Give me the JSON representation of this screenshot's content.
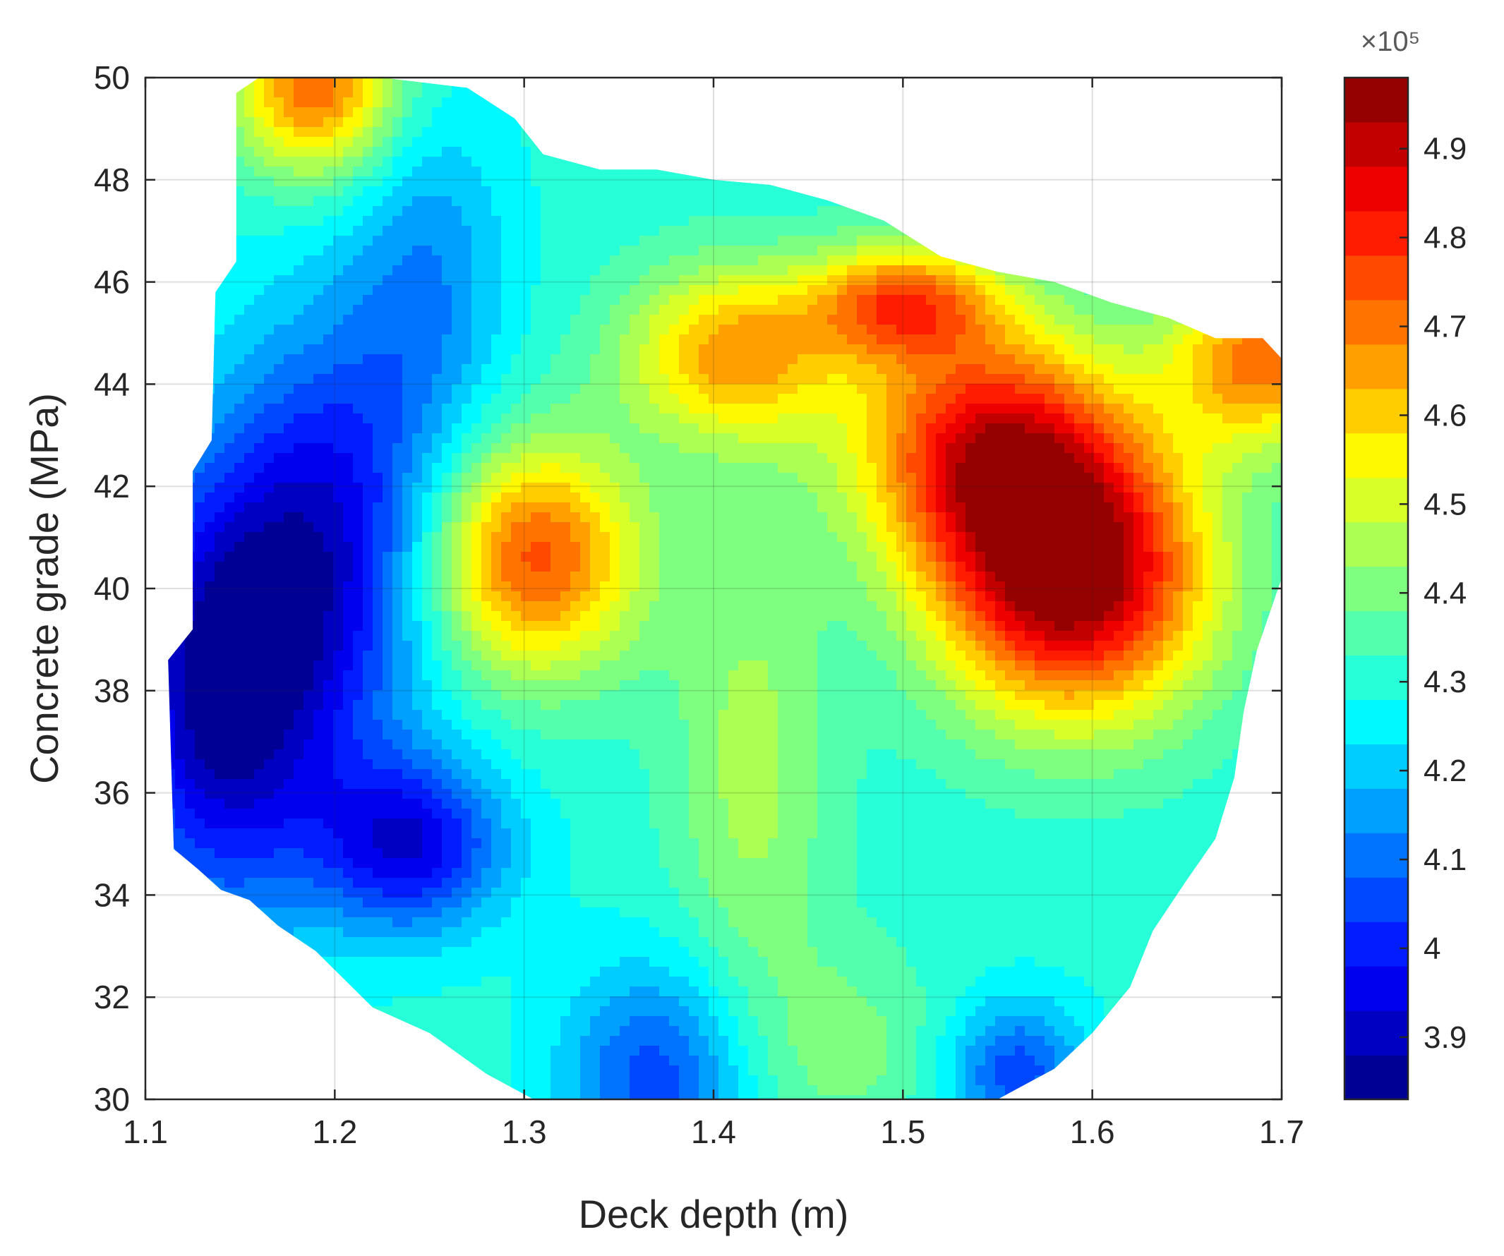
{
  "chart_data": {
    "type": "contour",
    "title": "",
    "xlabel": "Deck depth (m)",
    "ylabel": "Concrete grade (MPa)",
    "xlim": [
      1.1,
      1.7
    ],
    "ylim": [
      30,
      50
    ],
    "xticks": [
      "1.1",
      "1.2",
      "1.3",
      "1.4",
      "1.5",
      "1.6",
      "1.7"
    ],
    "yticks": [
      "30",
      "32",
      "34",
      "36",
      "38",
      "40",
      "42",
      "44",
      "46",
      "48",
      "50"
    ],
    "grid": true,
    "colormap": "jet",
    "colorbar": {
      "multiplier": "×10⁵",
      "clim": [
        3.83,
        4.98
      ],
      "ticks": [
        "3.9",
        "4",
        "4.1",
        "4.2",
        "4.3",
        "4.4",
        "4.5",
        "4.6",
        "4.7",
        "4.8",
        "4.9"
      ],
      "levels": 23,
      "stops": [
        "#00007f",
        "#0000ff",
        "#007fff",
        "#00ffff",
        "#7fff7f",
        "#ffff00",
        "#ff7f00",
        "#ff0000",
        "#7f0000"
      ]
    },
    "domain_boundary": [
      [
        1.148,
        49.7
      ],
      [
        1.16,
        50
      ],
      [
        1.225,
        50
      ],
      [
        1.27,
        49.8
      ],
      [
        1.295,
        49.2
      ],
      [
        1.31,
        48.5
      ],
      [
        1.34,
        48.2
      ],
      [
        1.37,
        48.2
      ],
      [
        1.4,
        48
      ],
      [
        1.43,
        47.9
      ],
      [
        1.46,
        47.6
      ],
      [
        1.49,
        47.2
      ],
      [
        1.52,
        46.5
      ],
      [
        1.55,
        46.2
      ],
      [
        1.58,
        46
      ],
      [
        1.61,
        45.6
      ],
      [
        1.64,
        45.3
      ],
      [
        1.665,
        44.9
      ],
      [
        1.69,
        44.9
      ],
      [
        1.7,
        44.5
      ],
      [
        1.7,
        40.2
      ],
      [
        1.687,
        38.8
      ],
      [
        1.68,
        37.6
      ],
      [
        1.675,
        36.3
      ],
      [
        1.665,
        35.1
      ],
      [
        1.65,
        34.3
      ],
      [
        1.632,
        33.3
      ],
      [
        1.62,
        32.2
      ],
      [
        1.6,
        31.3
      ],
      [
        1.58,
        30.6
      ],
      [
        1.56,
        30.2
      ],
      [
        1.55,
        30
      ],
      [
        1.305,
        30
      ],
      [
        1.28,
        30.5
      ],
      [
        1.25,
        31.3
      ],
      [
        1.22,
        31.8
      ],
      [
        1.19,
        32.9
      ],
      [
        1.17,
        33.4
      ],
      [
        1.155,
        33.9
      ],
      [
        1.14,
        34.1
      ],
      [
        1.128,
        34.5
      ],
      [
        1.115,
        34.9
      ],
      [
        1.112,
        38.6
      ],
      [
        1.125,
        39.2
      ],
      [
        1.125,
        42.3
      ],
      [
        1.135,
        42.9
      ],
      [
        1.137,
        45.8
      ],
      [
        1.148,
        46.4
      ]
    ],
    "peaks": [
      {
        "x": 1.59,
        "y": 40.2,
        "value": 4.97,
        "sx": 0.05,
        "sy": 1.9
      },
      {
        "x": 1.545,
        "y": 42.8,
        "value": 4.8,
        "sx": 0.05,
        "sy": 1.7
      },
      {
        "x": 1.305,
        "y": 40.6,
        "value": 4.75,
        "sx": 0.04,
        "sy": 1.6
      },
      {
        "x": 1.41,
        "y": 44.6,
        "value": 4.65,
        "sx": 0.04,
        "sy": 1.2
      },
      {
        "x": 1.5,
        "y": 45.6,
        "value": 4.7,
        "sx": 0.035,
        "sy": 0.8
      },
      {
        "x": 1.69,
        "y": 44.5,
        "value": 4.7,
        "sx": 0.035,
        "sy": 1.2
      },
      {
        "x": 1.19,
        "y": 49.8,
        "value": 4.72,
        "sx": 0.03,
        "sy": 1.2
      },
      {
        "x": 1.42,
        "y": 36.5,
        "value": 4.45,
        "sx": 0.03,
        "sy": 3.5
      },
      {
        "x": 1.47,
        "y": 31.0,
        "value": 4.4,
        "sx": 0.035,
        "sy": 1.4
      },
      {
        "x": 1.14,
        "y": 38.0,
        "value": 3.85,
        "sx": 0.04,
        "sy": 3.0
      },
      {
        "x": 1.24,
        "y": 35.0,
        "value": 3.95,
        "sx": 0.035,
        "sy": 1.2
      },
      {
        "x": 1.2,
        "y": 41.0,
        "value": 3.98,
        "sx": 0.04,
        "sy": 3.0
      },
      {
        "x": 1.37,
        "y": 30.4,
        "value": 4.05,
        "sx": 0.035,
        "sy": 1.6
      },
      {
        "x": 1.56,
        "y": 30.5,
        "value": 4.05,
        "sx": 0.025,
        "sy": 1.0
      },
      {
        "x": 1.25,
        "y": 46.0,
        "value": 4.15,
        "sx": 0.03,
        "sy": 2.5
      }
    ],
    "base_value": 4.3
  }
}
